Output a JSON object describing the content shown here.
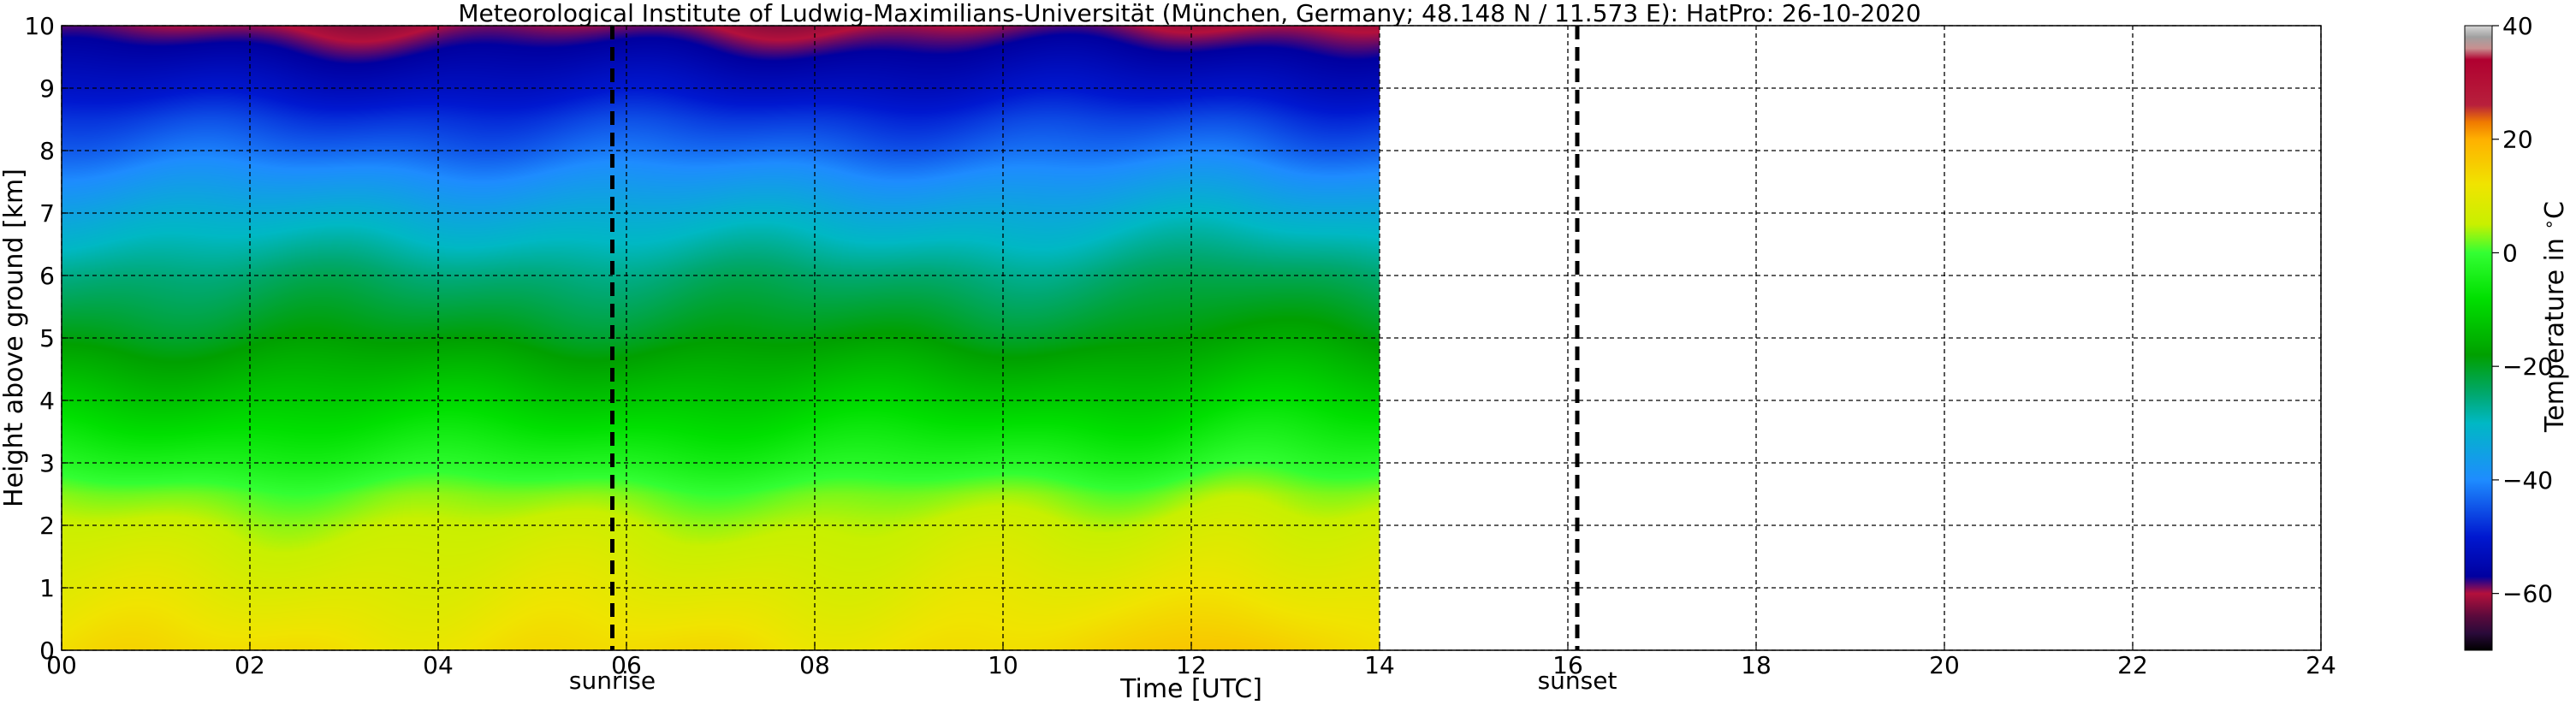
{
  "chart_data": {
    "type": "heatmap",
    "title": "Meteorological Institute of Ludwig-Maximilians-Universität (München, Germany; 48.148 N / 11.573 E):    HatPro: 26-10-2020",
    "xlabel": "Time [UTC]",
    "ylabel": "Height above ground [km]",
    "xlim": [
      0,
      24
    ],
    "ylim": [
      0,
      10
    ],
    "x_ticks": [
      "00",
      "02",
      "04",
      "06",
      "08",
      "10",
      "12",
      "14",
      "16",
      "18",
      "20",
      "22",
      "24"
    ],
    "x_tick_values": [
      0,
      2,
      4,
      6,
      8,
      10,
      12,
      14,
      16,
      18,
      20,
      22,
      24
    ],
    "y_ticks": [
      "0",
      "1",
      "2",
      "3",
      "4",
      "5",
      "6",
      "7",
      "8",
      "9",
      "10"
    ],
    "y_tick_values": [
      0,
      1,
      2,
      3,
      4,
      5,
      6,
      7,
      8,
      9,
      10
    ],
    "grid": true,
    "data_extent_x": [
      0,
      14
    ],
    "data_extent_y": [
      0,
      10
    ],
    "temperature_profile": {
      "height_km": [
        0,
        0.5,
        1,
        1.5,
        2,
        2.5,
        3,
        3.5,
        4,
        4.5,
        5,
        5.5,
        6,
        6.5,
        7,
        7.5,
        8,
        8.5,
        9,
        9.5,
        10
      ],
      "temperature_c": [
        13,
        11,
        9,
        7,
        5,
        2,
        -3,
        -7,
        -11,
        -15,
        -19,
        -22,
        -25,
        -29,
        -33,
        -38,
        -43,
        -47,
        -52,
        -56,
        -60
      ]
    },
    "warm_anomaly": {
      "time_utc": 12.5,
      "delta_c": 5
    },
    "markers": [
      {
        "label": "sunrise",
        "time": 5.85
      },
      {
        "label": "sunset",
        "time": 16.1
      }
    ],
    "colorbar": {
      "label": "Temperature in $^\\circ$C",
      "vmin": -70,
      "vmax": 40,
      "ticks": [
        "40",
        "20",
        "0",
        "−20",
        "−40",
        "−60"
      ],
      "tick_values": [
        40,
        20,
        0,
        -20,
        -40,
        -60
      ],
      "stops": [
        {
          "value": -70,
          "color": "#000000"
        },
        {
          "value": -67,
          "color": "#2a0a3a"
        },
        {
          "value": -64,
          "color": "#5a0a3c"
        },
        {
          "value": -60,
          "color": "#b4103c"
        },
        {
          "value": -57,
          "color": "#0000a0"
        },
        {
          "value": -50,
          "color": "#0018d0"
        },
        {
          "value": -40,
          "color": "#1e8cff"
        },
        {
          "value": -30,
          "color": "#00b8c4"
        },
        {
          "value": -25,
          "color": "#00a870"
        },
        {
          "value": -18,
          "color": "#00a000"
        },
        {
          "value": -8,
          "color": "#00e000"
        },
        {
          "value": 0,
          "color": "#33ff33"
        },
        {
          "value": 5,
          "color": "#c8f000"
        },
        {
          "value": 12,
          "color": "#f0e400"
        },
        {
          "value": 20,
          "color": "#ffb000"
        },
        {
          "value": 23,
          "color": "#f07a00"
        },
        {
          "value": 26,
          "color": "#b8203c"
        },
        {
          "value": 34,
          "color": "#b00030"
        },
        {
          "value": 36,
          "color": "#c89090"
        },
        {
          "value": 38,
          "color": "#a0a0a0"
        },
        {
          "value": 40,
          "color": "#d8d8d8"
        }
      ]
    }
  }
}
